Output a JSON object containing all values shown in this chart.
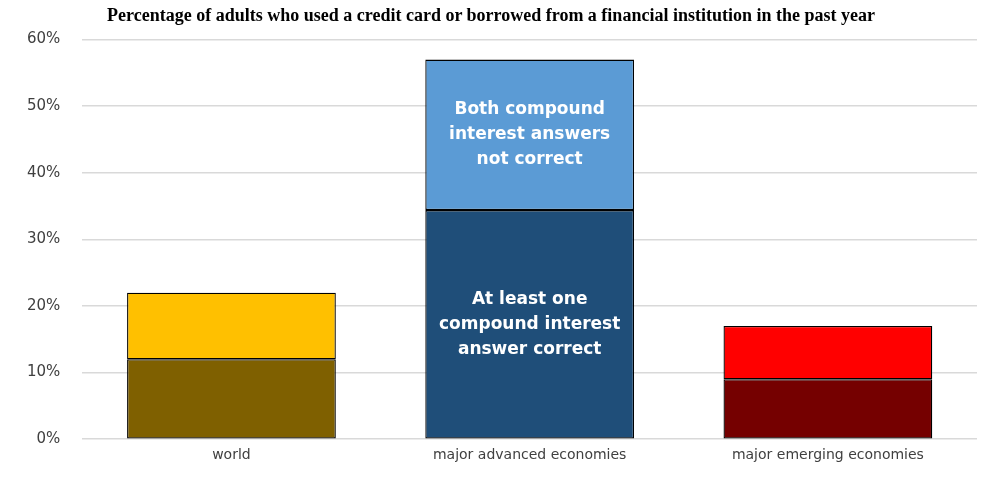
{
  "chart_data": {
    "type": "bar",
    "title": "Percentage of adults who used a credit card or borrowed from a financial institution in the past year",
    "categories": [
      "world",
      "major advanced economies",
      "major emerging economies"
    ],
    "stacked": true,
    "series": [
      {
        "name": "At least one compound interest answer correct",
        "colors": [
          "#7f6000",
          "#1f4e79",
          "#750000"
        ],
        "values": [
          12,
          34.4,
          9
        ]
      },
      {
        "name": "Both compound interest answers not correct",
        "colors": [
          "#ffc000",
          "#5b9bd5",
          "#ff0000"
        ],
        "values": [
          10,
          22.6,
          8
        ]
      }
    ],
    "ylim": [
      0,
      60
    ],
    "yticks": [
      {
        "value": 0,
        "label": "0%"
      },
      {
        "value": 10,
        "label": "10%"
      },
      {
        "value": 20,
        "label": "20%"
      },
      {
        "value": 30,
        "label": "30%"
      },
      {
        "value": 40,
        "label": "40%"
      },
      {
        "value": 50,
        "label": "50%"
      },
      {
        "value": 60,
        "label": "60%"
      }
    ],
    "grid": "y",
    "legend": false
  }
}
